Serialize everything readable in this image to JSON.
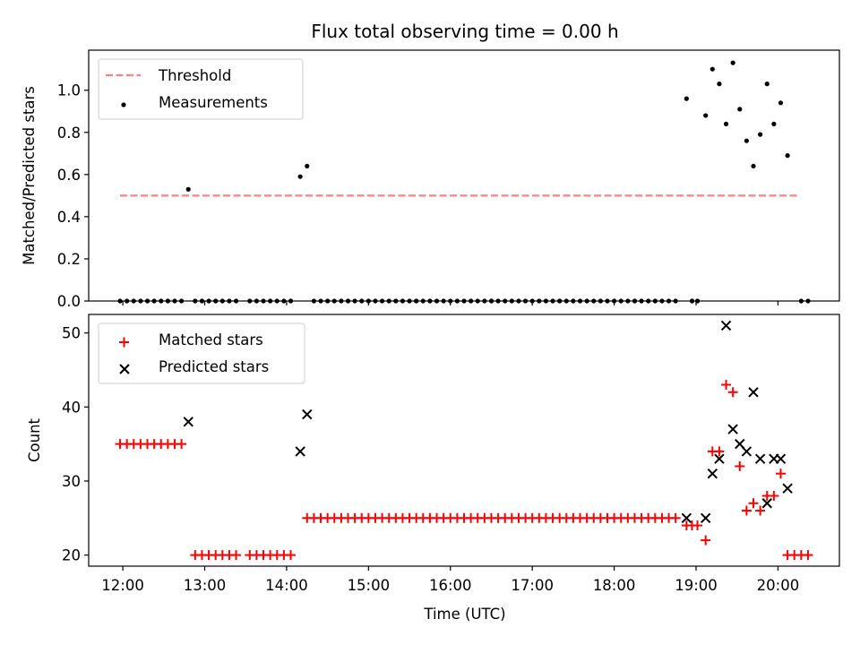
{
  "title": "Flux total observing time = 0.00 h",
  "xlabel": "Time (UTC)",
  "colors": {
    "threshold": "#ff8080",
    "measurements": "#000000",
    "matched": "#ff0000",
    "predicted": "#000000"
  },
  "chart_data": [
    {
      "type": "scatter",
      "title": "Flux total observing time = 0.00 h",
      "xlabel": "",
      "ylabel": "Matched/Predicted stars",
      "xlim": [
        "11:35",
        "20:45"
      ],
      "ylim": [
        0,
        1.19
      ],
      "xticks": [
        "12:00",
        "13:00",
        "14:00",
        "15:00",
        "16:00",
        "17:00",
        "18:00",
        "19:00",
        "20:00"
      ],
      "yticks": [
        0.0,
        0.2,
        0.4,
        0.6,
        0.8,
        1.0
      ],
      "ytick_labels": [
        "0.0",
        "0.2",
        "0.4",
        "0.6",
        "0.8",
        "1.0"
      ],
      "legend_position": "upper-left",
      "legend": [
        "Threshold",
        "Measurements"
      ],
      "threshold": {
        "name": "Threshold",
        "value": 0.5,
        "x_range": [
          "11:58",
          "20:15"
        ]
      },
      "series": [
        {
          "name": "Measurements",
          "points": [
            [
              "11:58",
              0
            ],
            [
              "12:03",
              0
            ],
            [
              "12:08",
              0
            ],
            [
              "12:13",
              0
            ],
            [
              "12:18",
              0
            ],
            [
              "12:23",
              0
            ],
            [
              "12:28",
              0
            ],
            [
              "12:33",
              0
            ],
            [
              "12:38",
              0
            ],
            [
              "12:43",
              0
            ],
            [
              "12:48",
              0.53
            ],
            [
              "12:53",
              0
            ],
            [
              "12:58",
              0
            ],
            [
              "13:03",
              0
            ],
            [
              "13:08",
              0
            ],
            [
              "13:13",
              0
            ],
            [
              "13:18",
              0
            ],
            [
              "13:23",
              0
            ],
            [
              "13:33",
              0
            ],
            [
              "13:38",
              0
            ],
            [
              "13:43",
              0
            ],
            [
              "13:48",
              0
            ],
            [
              "13:53",
              0
            ],
            [
              "13:58",
              0
            ],
            [
              "14:03",
              0
            ],
            [
              "14:10",
              0.59
            ],
            [
              "14:15",
              0.64
            ],
            [
              "14:20",
              0
            ],
            [
              "14:25",
              0
            ],
            [
              "14:30",
              0
            ],
            [
              "14:35",
              0
            ],
            [
              "14:40",
              0
            ],
            [
              "14:45",
              0
            ],
            [
              "14:50",
              0
            ],
            [
              "14:55",
              0
            ],
            [
              "15:00",
              0
            ],
            [
              "15:05",
              0
            ],
            [
              "15:10",
              0
            ],
            [
              "15:15",
              0
            ],
            [
              "15:20",
              0
            ],
            [
              "15:25",
              0
            ],
            [
              "15:30",
              0
            ],
            [
              "15:35",
              0
            ],
            [
              "15:40",
              0
            ],
            [
              "15:45",
              0
            ],
            [
              "15:50",
              0
            ],
            [
              "15:55",
              0
            ],
            [
              "16:00",
              0
            ],
            [
              "16:05",
              0
            ],
            [
              "16:10",
              0
            ],
            [
              "16:15",
              0
            ],
            [
              "16:20",
              0
            ],
            [
              "16:25",
              0
            ],
            [
              "16:30",
              0
            ],
            [
              "16:35",
              0
            ],
            [
              "16:40",
              0
            ],
            [
              "16:45",
              0
            ],
            [
              "16:50",
              0
            ],
            [
              "16:55",
              0
            ],
            [
              "17:00",
              0
            ],
            [
              "17:05",
              0
            ],
            [
              "17:10",
              0
            ],
            [
              "17:15",
              0
            ],
            [
              "17:20",
              0
            ],
            [
              "17:25",
              0
            ],
            [
              "17:30",
              0
            ],
            [
              "17:35",
              0
            ],
            [
              "17:40",
              0
            ],
            [
              "17:45",
              0
            ],
            [
              "17:50",
              0
            ],
            [
              "17:55",
              0
            ],
            [
              "18:00",
              0
            ],
            [
              "18:05",
              0
            ],
            [
              "18:10",
              0
            ],
            [
              "18:15",
              0
            ],
            [
              "18:20",
              0
            ],
            [
              "18:25",
              0
            ],
            [
              "18:30",
              0
            ],
            [
              "18:35",
              0
            ],
            [
              "18:40",
              0
            ],
            [
              "18:45",
              0
            ],
            [
              "18:53",
              0.96
            ],
            [
              "18:57",
              0
            ],
            [
              "19:01",
              0
            ],
            [
              "19:07",
              0.88
            ],
            [
              "19:12",
              1.1
            ],
            [
              "19:17",
              1.03
            ],
            [
              "19:22",
              0.84
            ],
            [
              "19:27",
              1.13
            ],
            [
              "19:32",
              0.91
            ],
            [
              "19:37",
              0.76
            ],
            [
              "19:42",
              0.64
            ],
            [
              "19:47",
              0.79
            ],
            [
              "19:52",
              1.03
            ],
            [
              "19:57",
              0.84
            ],
            [
              "20:02",
              0.94
            ],
            [
              "20:07",
              0.69
            ],
            [
              "20:17",
              0
            ],
            [
              "20:22",
              0
            ]
          ]
        }
      ]
    },
    {
      "type": "scatter",
      "xlabel": "Time (UTC)",
      "ylabel": "Count",
      "xlim": [
        "11:35",
        "20:45"
      ],
      "ylim": [
        18.5,
        52.5
      ],
      "xticks": [
        "12:00",
        "13:00",
        "14:00",
        "15:00",
        "16:00",
        "17:00",
        "18:00",
        "19:00",
        "20:00"
      ],
      "yticks": [
        20,
        30,
        40,
        50
      ],
      "ytick_labels": [
        "20",
        "30",
        "40",
        "50"
      ],
      "legend_position": "upper-left",
      "legend": [
        "Matched stars",
        "Predicted stars"
      ],
      "series": [
        {
          "name": "Matched stars",
          "marker": "+",
          "points": [
            [
              "11:58",
              35
            ],
            [
              "12:03",
              35
            ],
            [
              "12:08",
              35
            ],
            [
              "12:13",
              35
            ],
            [
              "12:18",
              35
            ],
            [
              "12:23",
              35
            ],
            [
              "12:28",
              35
            ],
            [
              "12:33",
              35
            ],
            [
              "12:38",
              35
            ],
            [
              "12:43",
              35
            ],
            [
              "12:53",
              20
            ],
            [
              "12:58",
              20
            ],
            [
              "13:03",
              20
            ],
            [
              "13:08",
              20
            ],
            [
              "13:13",
              20
            ],
            [
              "13:18",
              20
            ],
            [
              "13:23",
              20
            ],
            [
              "13:33",
              20
            ],
            [
              "13:38",
              20
            ],
            [
              "13:43",
              20
            ],
            [
              "13:48",
              20
            ],
            [
              "13:53",
              20
            ],
            [
              "13:58",
              20
            ],
            [
              "14:03",
              20
            ],
            [
              "14:15",
              25
            ],
            [
              "14:20",
              25
            ],
            [
              "14:25",
              25
            ],
            [
              "14:30",
              25
            ],
            [
              "14:35",
              25
            ],
            [
              "14:40",
              25
            ],
            [
              "14:45",
              25
            ],
            [
              "14:50",
              25
            ],
            [
              "14:55",
              25
            ],
            [
              "15:00",
              25
            ],
            [
              "15:05",
              25
            ],
            [
              "15:10",
              25
            ],
            [
              "15:15",
              25
            ],
            [
              "15:20",
              25
            ],
            [
              "15:25",
              25
            ],
            [
              "15:30",
              25
            ],
            [
              "15:35",
              25
            ],
            [
              "15:40",
              25
            ],
            [
              "15:45",
              25
            ],
            [
              "15:50",
              25
            ],
            [
              "15:55",
              25
            ],
            [
              "16:00",
              25
            ],
            [
              "16:05",
              25
            ],
            [
              "16:10",
              25
            ],
            [
              "16:15",
              25
            ],
            [
              "16:20",
              25
            ],
            [
              "16:25",
              25
            ],
            [
              "16:30",
              25
            ],
            [
              "16:35",
              25
            ],
            [
              "16:40",
              25
            ],
            [
              "16:45",
              25
            ],
            [
              "16:50",
              25
            ],
            [
              "16:55",
              25
            ],
            [
              "17:00",
              25
            ],
            [
              "17:05",
              25
            ],
            [
              "17:10",
              25
            ],
            [
              "17:15",
              25
            ],
            [
              "17:20",
              25
            ],
            [
              "17:25",
              25
            ],
            [
              "17:30",
              25
            ],
            [
              "17:35",
              25
            ],
            [
              "17:40",
              25
            ],
            [
              "17:45",
              25
            ],
            [
              "17:50",
              25
            ],
            [
              "17:55",
              25
            ],
            [
              "18:00",
              25
            ],
            [
              "18:05",
              25
            ],
            [
              "18:10",
              25
            ],
            [
              "18:15",
              25
            ],
            [
              "18:20",
              25
            ],
            [
              "18:25",
              25
            ],
            [
              "18:30",
              25
            ],
            [
              "18:35",
              25
            ],
            [
              "18:40",
              25
            ],
            [
              "18:45",
              25
            ],
            [
              "18:53",
              24
            ],
            [
              "18:57",
              24
            ],
            [
              "19:01",
              24
            ],
            [
              "19:07",
              22
            ],
            [
              "19:12",
              34
            ],
            [
              "19:17",
              34
            ],
            [
              "19:22",
              43
            ],
            [
              "19:27",
              42
            ],
            [
              "19:32",
              32
            ],
            [
              "19:37",
              26
            ],
            [
              "19:42",
              27
            ],
            [
              "19:47",
              26
            ],
            [
              "19:52",
              28
            ],
            [
              "19:57",
              28
            ],
            [
              "20:02",
              31
            ],
            [
              "20:07",
              20
            ],
            [
              "20:12",
              20
            ],
            [
              "20:17",
              20
            ],
            [
              "20:22",
              20
            ]
          ]
        },
        {
          "name": "Predicted stars",
          "marker": "x",
          "points": [
            [
              "12:48",
              38
            ],
            [
              "14:10",
              34
            ],
            [
              "14:15",
              39
            ],
            [
              "18:53",
              25
            ],
            [
              "19:07",
              25
            ],
            [
              "19:12",
              31
            ],
            [
              "19:17",
              33
            ],
            [
              "19:22",
              51
            ],
            [
              "19:27",
              37
            ],
            [
              "19:32",
              35
            ],
            [
              "19:37",
              34
            ],
            [
              "19:42",
              42
            ],
            [
              "19:47",
              33
            ],
            [
              "19:52",
              27
            ],
            [
              "19:57",
              33
            ],
            [
              "20:02",
              33
            ],
            [
              "20:07",
              29
            ]
          ]
        }
      ]
    }
  ]
}
